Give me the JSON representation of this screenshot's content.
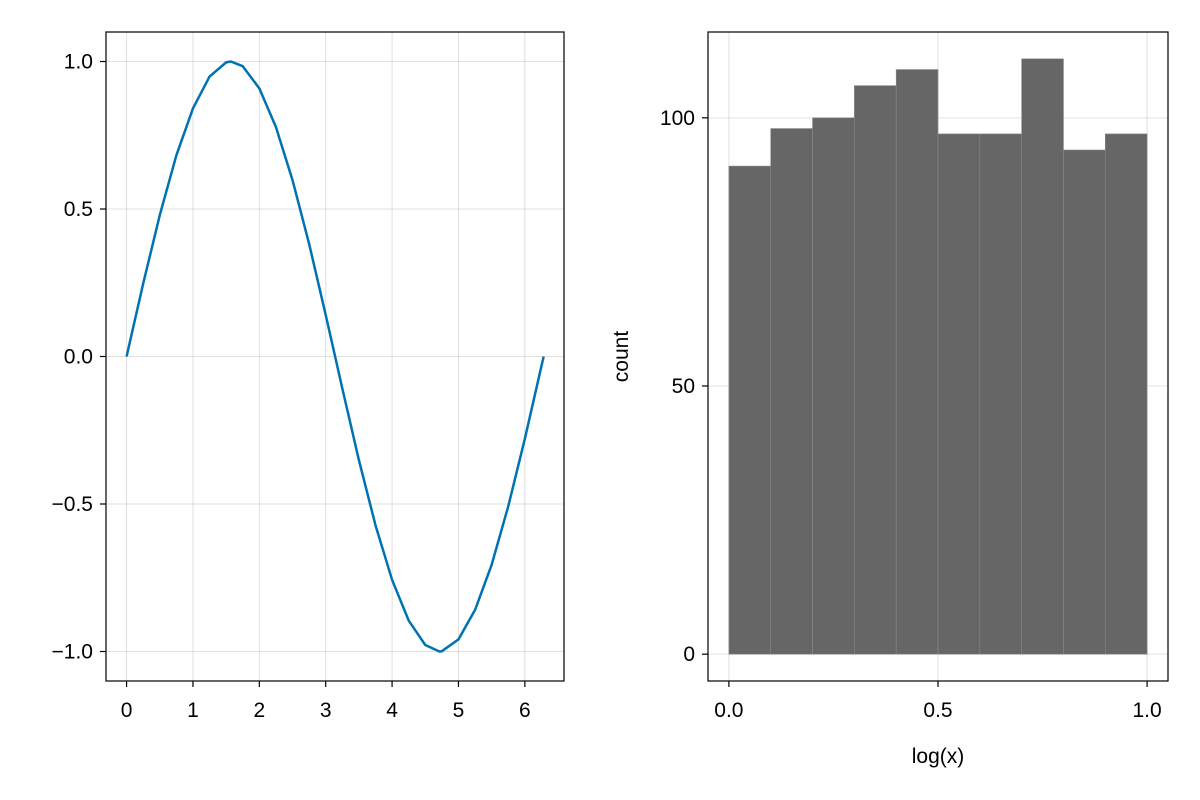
{
  "chart_data": [
    {
      "type": "line",
      "xlabel": "",
      "ylabel": "",
      "xlim": [
        -0.31,
        6.59
      ],
      "ylim": [
        -1.1,
        1.1
      ],
      "xticks": [
        0,
        1,
        2,
        3,
        4,
        5,
        6
      ],
      "xtick_labels": [
        "0",
        "1",
        "2",
        "3",
        "4",
        "5",
        "6"
      ],
      "yticks": [
        1.0,
        0.5,
        0.0,
        -0.5,
        -1.0
      ],
      "ytick_labels": [
        "1.0",
        "0.5",
        "0.0",
        "−0.5",
        "−1.0"
      ],
      "grid": true,
      "series": [
        {
          "color": "#0072b2",
          "x": [
            0,
            0.25,
            0.5,
            0.75,
            1.0,
            1.25,
            1.5,
            1.5708,
            1.75,
            2.0,
            2.25,
            2.5,
            2.75,
            3.0,
            3.1416,
            3.25,
            3.5,
            3.75,
            4.0,
            4.25,
            4.5,
            4.7124,
            4.75,
            5.0,
            5.25,
            5.5,
            5.75,
            6.0,
            6.2832
          ],
          "y": [
            0.0,
            0.247,
            0.479,
            0.682,
            0.841,
            0.949,
            0.997,
            1.0,
            0.984,
            0.909,
            0.778,
            0.598,
            0.382,
            0.141,
            0.0,
            -0.108,
            -0.351,
            -0.572,
            -0.757,
            -0.895,
            -0.978,
            -1.0,
            -0.999,
            -0.959,
            -0.859,
            -0.706,
            -0.508,
            -0.279,
            0.0
          ]
        }
      ]
    },
    {
      "type": "bar",
      "xlabel": "log(x)",
      "ylabel": "count",
      "xlim": [
        -0.05,
        1.05
      ],
      "ylim": [
        -5,
        116
      ],
      "xticks": [
        0.0,
        0.5,
        1.0
      ],
      "xtick_labels": [
        "0.0",
        "0.5",
        "1.0"
      ],
      "yticks": [
        0,
        50,
        100
      ],
      "ytick_labels": [
        "0",
        "50",
        "100"
      ],
      "grid": true,
      "bar_color": "#666666",
      "bin_edges": [
        0.0,
        0.1,
        0.2,
        0.3,
        0.4,
        0.5,
        0.6,
        0.7,
        0.8,
        0.9,
        1.0
      ],
      "values": [
        91,
        98,
        100,
        106,
        109,
        97,
        97,
        111,
        94,
        97
      ]
    }
  ]
}
